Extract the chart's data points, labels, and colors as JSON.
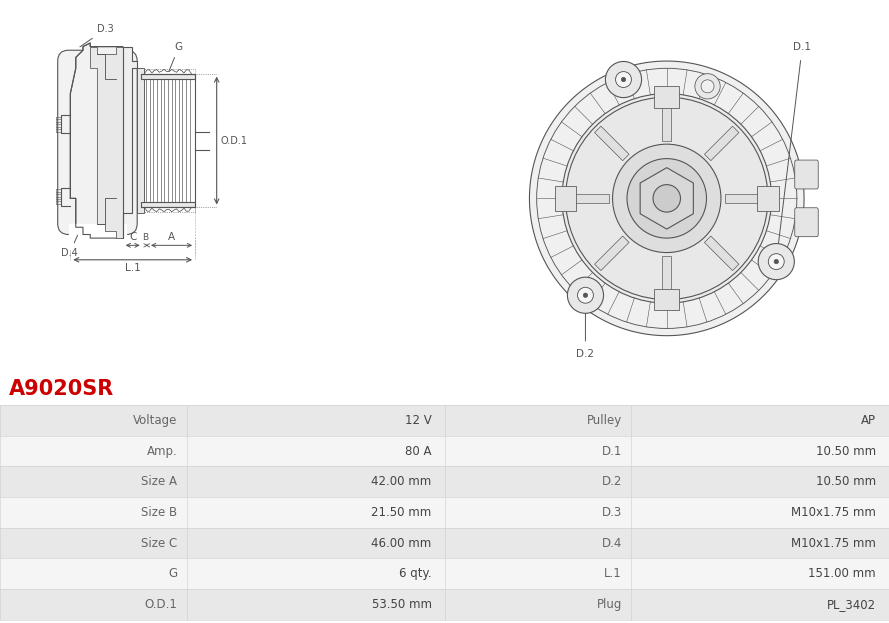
{
  "title": "A9020SR",
  "title_color": "#cc0000",
  "bg_color": "#ffffff",
  "table_rows": [
    [
      "Voltage",
      "12 V",
      "Pulley",
      "AP"
    ],
    [
      "Amp.",
      "80 A",
      "D.1",
      "10.50 mm"
    ],
    [
      "Size A",
      "42.00 mm",
      "D.2",
      "10.50 mm"
    ],
    [
      "Size B",
      "21.50 mm",
      "D.3",
      "M10x1.75 mm"
    ],
    [
      "Size C",
      "46.00 mm",
      "D.4",
      "M10x1.75 mm"
    ],
    [
      "G",
      "6 qty.",
      "L.1",
      "151.00 mm"
    ],
    [
      "O.D.1",
      "53.50 mm",
      "Plug",
      "PL_3402"
    ]
  ],
  "row_bg_odd": "#e8e8e8",
  "row_bg_even": "#f5f5f5",
  "border_color": "#cccccc",
  "text_color": "#444444",
  "label_color": "#666666",
  "line_color": "#555555",
  "line_width": 0.8
}
